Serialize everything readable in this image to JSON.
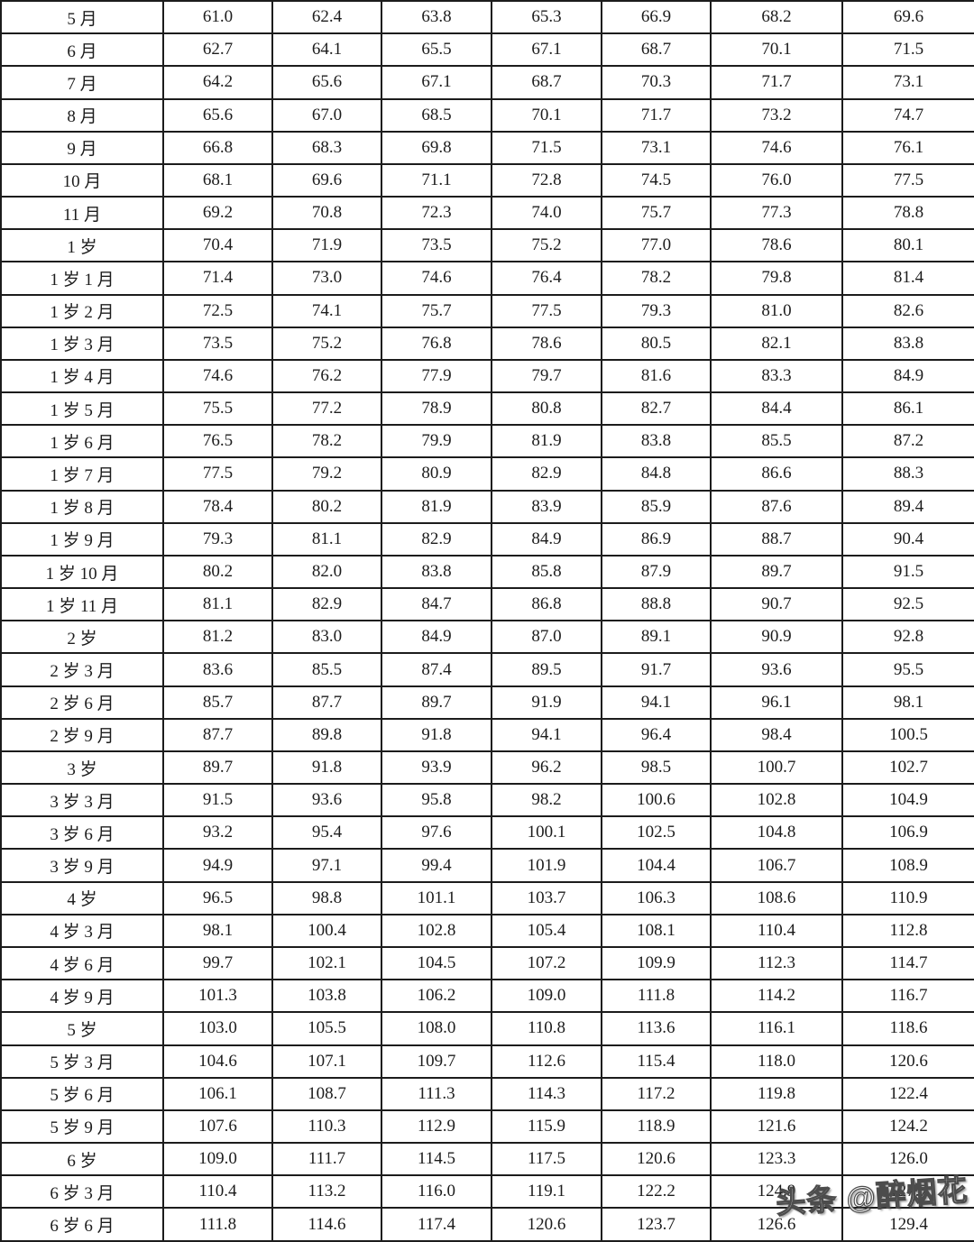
{
  "table": {
    "rows": [
      {
        "label": "5 月",
        "values": [
          "61.0",
          "62.4",
          "63.8",
          "65.3",
          "66.9",
          "68.2",
          "69.6"
        ]
      },
      {
        "label": "6 月",
        "values": [
          "62.7",
          "64.1",
          "65.5",
          "67.1",
          "68.7",
          "70.1",
          "71.5"
        ]
      },
      {
        "label": "7 月",
        "values": [
          "64.2",
          "65.6",
          "67.1",
          "68.7",
          "70.3",
          "71.7",
          "73.1"
        ]
      },
      {
        "label": "8 月",
        "values": [
          "65.6",
          "67.0",
          "68.5",
          "70.1",
          "71.7",
          "73.2",
          "74.7"
        ]
      },
      {
        "label": "9 月",
        "values": [
          "66.8",
          "68.3",
          "69.8",
          "71.5",
          "73.1",
          "74.6",
          "76.1"
        ]
      },
      {
        "label": "10 月",
        "values": [
          "68.1",
          "69.6",
          "71.1",
          "72.8",
          "74.5",
          "76.0",
          "77.5"
        ]
      },
      {
        "label": "11 月",
        "values": [
          "69.2",
          "70.8",
          "72.3",
          "74.0",
          "75.7",
          "77.3",
          "78.8"
        ]
      },
      {
        "label": "1 岁",
        "values": [
          "70.4",
          "71.9",
          "73.5",
          "75.2",
          "77.0",
          "78.6",
          "80.1"
        ]
      },
      {
        "label": "1 岁 1 月",
        "values": [
          "71.4",
          "73.0",
          "74.6",
          "76.4",
          "78.2",
          "79.8",
          "81.4"
        ]
      },
      {
        "label": "1 岁 2 月",
        "values": [
          "72.5",
          "74.1",
          "75.7",
          "77.5",
          "79.3",
          "81.0",
          "82.6"
        ]
      },
      {
        "label": "1 岁 3 月",
        "values": [
          "73.5",
          "75.2",
          "76.8",
          "78.6",
          "80.5",
          "82.1",
          "83.8"
        ]
      },
      {
        "label": "1 岁 4 月",
        "values": [
          "74.6",
          "76.2",
          "77.9",
          "79.7",
          "81.6",
          "83.3",
          "84.9"
        ]
      },
      {
        "label": "1 岁 5 月",
        "values": [
          "75.5",
          "77.2",
          "78.9",
          "80.8",
          "82.7",
          "84.4",
          "86.1"
        ]
      },
      {
        "label": "1 岁 6 月",
        "values": [
          "76.5",
          "78.2",
          "79.9",
          "81.9",
          "83.8",
          "85.5",
          "87.2"
        ]
      },
      {
        "label": "1 岁 7 月",
        "values": [
          "77.5",
          "79.2",
          "80.9",
          "82.9",
          "84.8",
          "86.6",
          "88.3"
        ]
      },
      {
        "label": "1 岁 8 月",
        "values": [
          "78.4",
          "80.2",
          "81.9",
          "83.9",
          "85.9",
          "87.6",
          "89.4"
        ]
      },
      {
        "label": "1 岁 9 月",
        "values": [
          "79.3",
          "81.1",
          "82.9",
          "84.9",
          "86.9",
          "88.7",
          "90.4"
        ]
      },
      {
        "label": "1 岁 10 月",
        "values": [
          "80.2",
          "82.0",
          "83.8",
          "85.8",
          "87.9",
          "89.7",
          "91.5"
        ]
      },
      {
        "label": "1 岁 11 月",
        "values": [
          "81.1",
          "82.9",
          "84.7",
          "86.8",
          "88.8",
          "90.7",
          "92.5"
        ]
      },
      {
        "label": "2 岁",
        "values": [
          "81.2",
          "83.0",
          "84.9",
          "87.0",
          "89.1",
          "90.9",
          "92.8"
        ]
      },
      {
        "label": "2 岁 3 月",
        "values": [
          "83.6",
          "85.5",
          "87.4",
          "89.5",
          "91.7",
          "93.6",
          "95.5"
        ]
      },
      {
        "label": "2 岁 6 月",
        "values": [
          "85.7",
          "87.7",
          "89.7",
          "91.9",
          "94.1",
          "96.1",
          "98.1"
        ]
      },
      {
        "label": "2 岁 9 月",
        "values": [
          "87.7",
          "89.8",
          "91.8",
          "94.1",
          "96.4",
          "98.4",
          "100.5"
        ]
      },
      {
        "label": "3 岁",
        "values": [
          "89.7",
          "91.8",
          "93.9",
          "96.2",
          "98.5",
          "100.7",
          "102.7"
        ]
      },
      {
        "label": "3 岁 3 月",
        "values": [
          "91.5",
          "93.6",
          "95.8",
          "98.2",
          "100.6",
          "102.8",
          "104.9"
        ]
      },
      {
        "label": "3 岁 6 月",
        "values": [
          "93.2",
          "95.4",
          "97.6",
          "100.1",
          "102.5",
          "104.8",
          "106.9"
        ]
      },
      {
        "label": "3 岁 9 月",
        "values": [
          "94.9",
          "97.1",
          "99.4",
          "101.9",
          "104.4",
          "106.7",
          "108.9"
        ]
      },
      {
        "label": "4 岁",
        "values": [
          "96.5",
          "98.8",
          "101.1",
          "103.7",
          "106.3",
          "108.6",
          "110.9"
        ]
      },
      {
        "label": "4 岁 3 月",
        "values": [
          "98.1",
          "100.4",
          "102.8",
          "105.4",
          "108.1",
          "110.4",
          "112.8"
        ]
      },
      {
        "label": "4 岁 6 月",
        "values": [
          "99.7",
          "102.1",
          "104.5",
          "107.2",
          "109.9",
          "112.3",
          "114.7"
        ]
      },
      {
        "label": "4 岁 9 月",
        "values": [
          "101.3",
          "103.8",
          "106.2",
          "109.0",
          "111.8",
          "114.2",
          "116.7"
        ]
      },
      {
        "label": "5 岁",
        "values": [
          "103.0",
          "105.5",
          "108.0",
          "110.8",
          "113.6",
          "116.1",
          "118.6"
        ]
      },
      {
        "label": "5 岁 3 月",
        "values": [
          "104.6",
          "107.1",
          "109.7",
          "112.6",
          "115.4",
          "118.0",
          "120.6"
        ]
      },
      {
        "label": "5 岁 6 月",
        "values": [
          "106.1",
          "108.7",
          "111.3",
          "114.3",
          "117.2",
          "119.8",
          "122.4"
        ]
      },
      {
        "label": "5 岁 9 月",
        "values": [
          "107.6",
          "110.3",
          "112.9",
          "115.9",
          "118.9",
          "121.6",
          "124.2"
        ]
      },
      {
        "label": "6 岁",
        "values": [
          "109.0",
          "111.7",
          "114.5",
          "117.5",
          "120.6",
          "123.3",
          "126.0"
        ]
      },
      {
        "label": "6 岁 3 月",
        "values": [
          "110.4",
          "113.2",
          "116.0",
          "119.1",
          "122.2",
          "124.9",
          "127.7"
        ]
      },
      {
        "label": "6 岁 6 月",
        "values": [
          "111.8",
          "114.6",
          "117.4",
          "120.6",
          "123.7",
          "126.6",
          "129.4"
        ]
      }
    ]
  },
  "watermark": {
    "text": "头条 @醉烟花"
  },
  "colors": {
    "border": "#1c1c1c",
    "text": "#1c1c1c",
    "background": "#ffffff",
    "watermark_fill": "#ffffff",
    "watermark_outline": "#4c4c4c"
  }
}
